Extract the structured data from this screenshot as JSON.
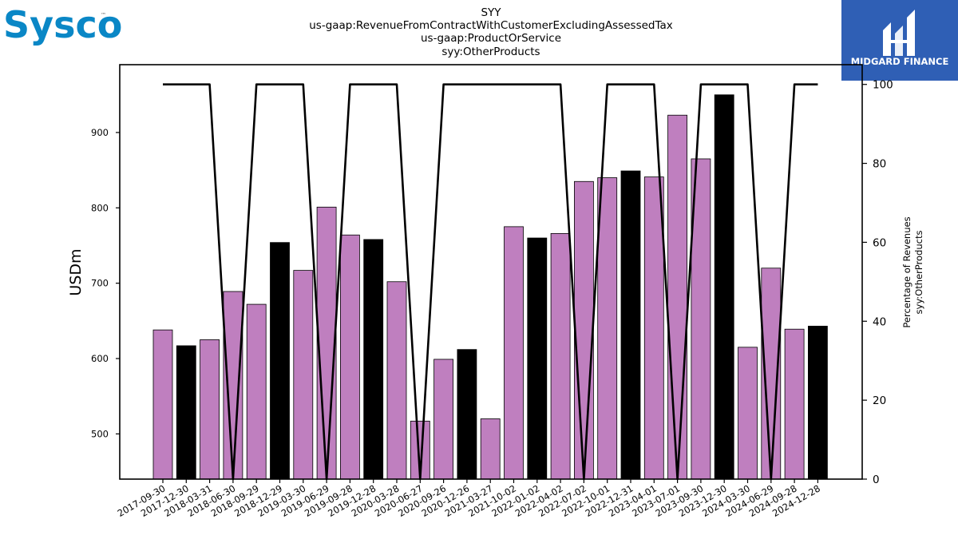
{
  "logos": {
    "company": "Sysco",
    "company_mark": "™",
    "finance": "MIDGARD FINANCE"
  },
  "chart_data": {
    "type": "bar",
    "title": "SYY",
    "subtitle_lines": [
      "us-gaap:RevenueFromContractWithCustomerExcludingAssessedTax",
      "us-gaap:ProductOrService",
      "syy:OtherProducts"
    ],
    "xlabel": "",
    "ylabel": "USDm",
    "y2label_lines": [
      "Percentage of Revenues",
      "syy:OtherProducts"
    ],
    "ylim": [
      440,
      990
    ],
    "yticks": [
      500,
      600,
      700,
      800,
      900
    ],
    "y2lim": [
      0,
      105
    ],
    "y2ticks": [
      0,
      20,
      40,
      60,
      80,
      100
    ],
    "grid": false,
    "colors": {
      "bar_purple": "#bf7fbf",
      "bar_black": "#000000",
      "line": "#000000"
    },
    "categories": [
      "2017-09-30",
      "2017-12-30",
      "2018-03-31",
      "2018-06-30",
      "2018-09-29",
      "2018-12-29",
      "2019-03-30",
      "2019-06-29",
      "2019-09-28",
      "2019-12-28",
      "2020-03-28",
      "2020-06-27",
      "2020-09-26",
      "2020-12-26",
      "2021-03-27",
      "2021-10-02",
      "2022-01-02",
      "2022-04-02",
      "2022-07-02",
      "2022-10-01",
      "2022-12-31",
      "2023-04-01",
      "2023-07-01",
      "2023-09-30",
      "2023-12-30",
      "2024-03-30",
      "2024-06-29",
      "2024-09-28",
      "2024-12-28"
    ],
    "series": [
      {
        "type": "bar",
        "values": [
          638,
          617,
          625,
          689,
          672,
          754,
          717,
          801,
          764,
          758,
          702,
          517,
          599,
          612,
          520,
          775,
          760,
          766,
          835,
          840,
          849,
          841,
          923,
          865,
          950,
          615,
          720,
          639,
          643
        ],
        "bar_colors": [
          "purple",
          "black",
          "purple",
          "purple",
          "purple",
          "black",
          "purple",
          "purple",
          "purple",
          "black",
          "purple",
          "purple",
          "purple",
          "black",
          "purple",
          "purple",
          "black",
          "purple",
          "purple",
          "purple",
          "black",
          "purple",
          "purple",
          "purple",
          "black",
          "purple",
          "purple",
          "purple",
          "black"
        ]
      },
      {
        "type": "line",
        "axis": "right",
        "values": [
          100,
          100,
          100,
          0,
          100,
          100,
          100,
          0,
          100,
          100,
          100,
          0,
          100,
          100,
          100,
          100,
          100,
          100,
          0,
          100,
          100,
          100,
          0,
          100,
          100,
          100,
          0,
          100,
          100
        ]
      }
    ]
  }
}
